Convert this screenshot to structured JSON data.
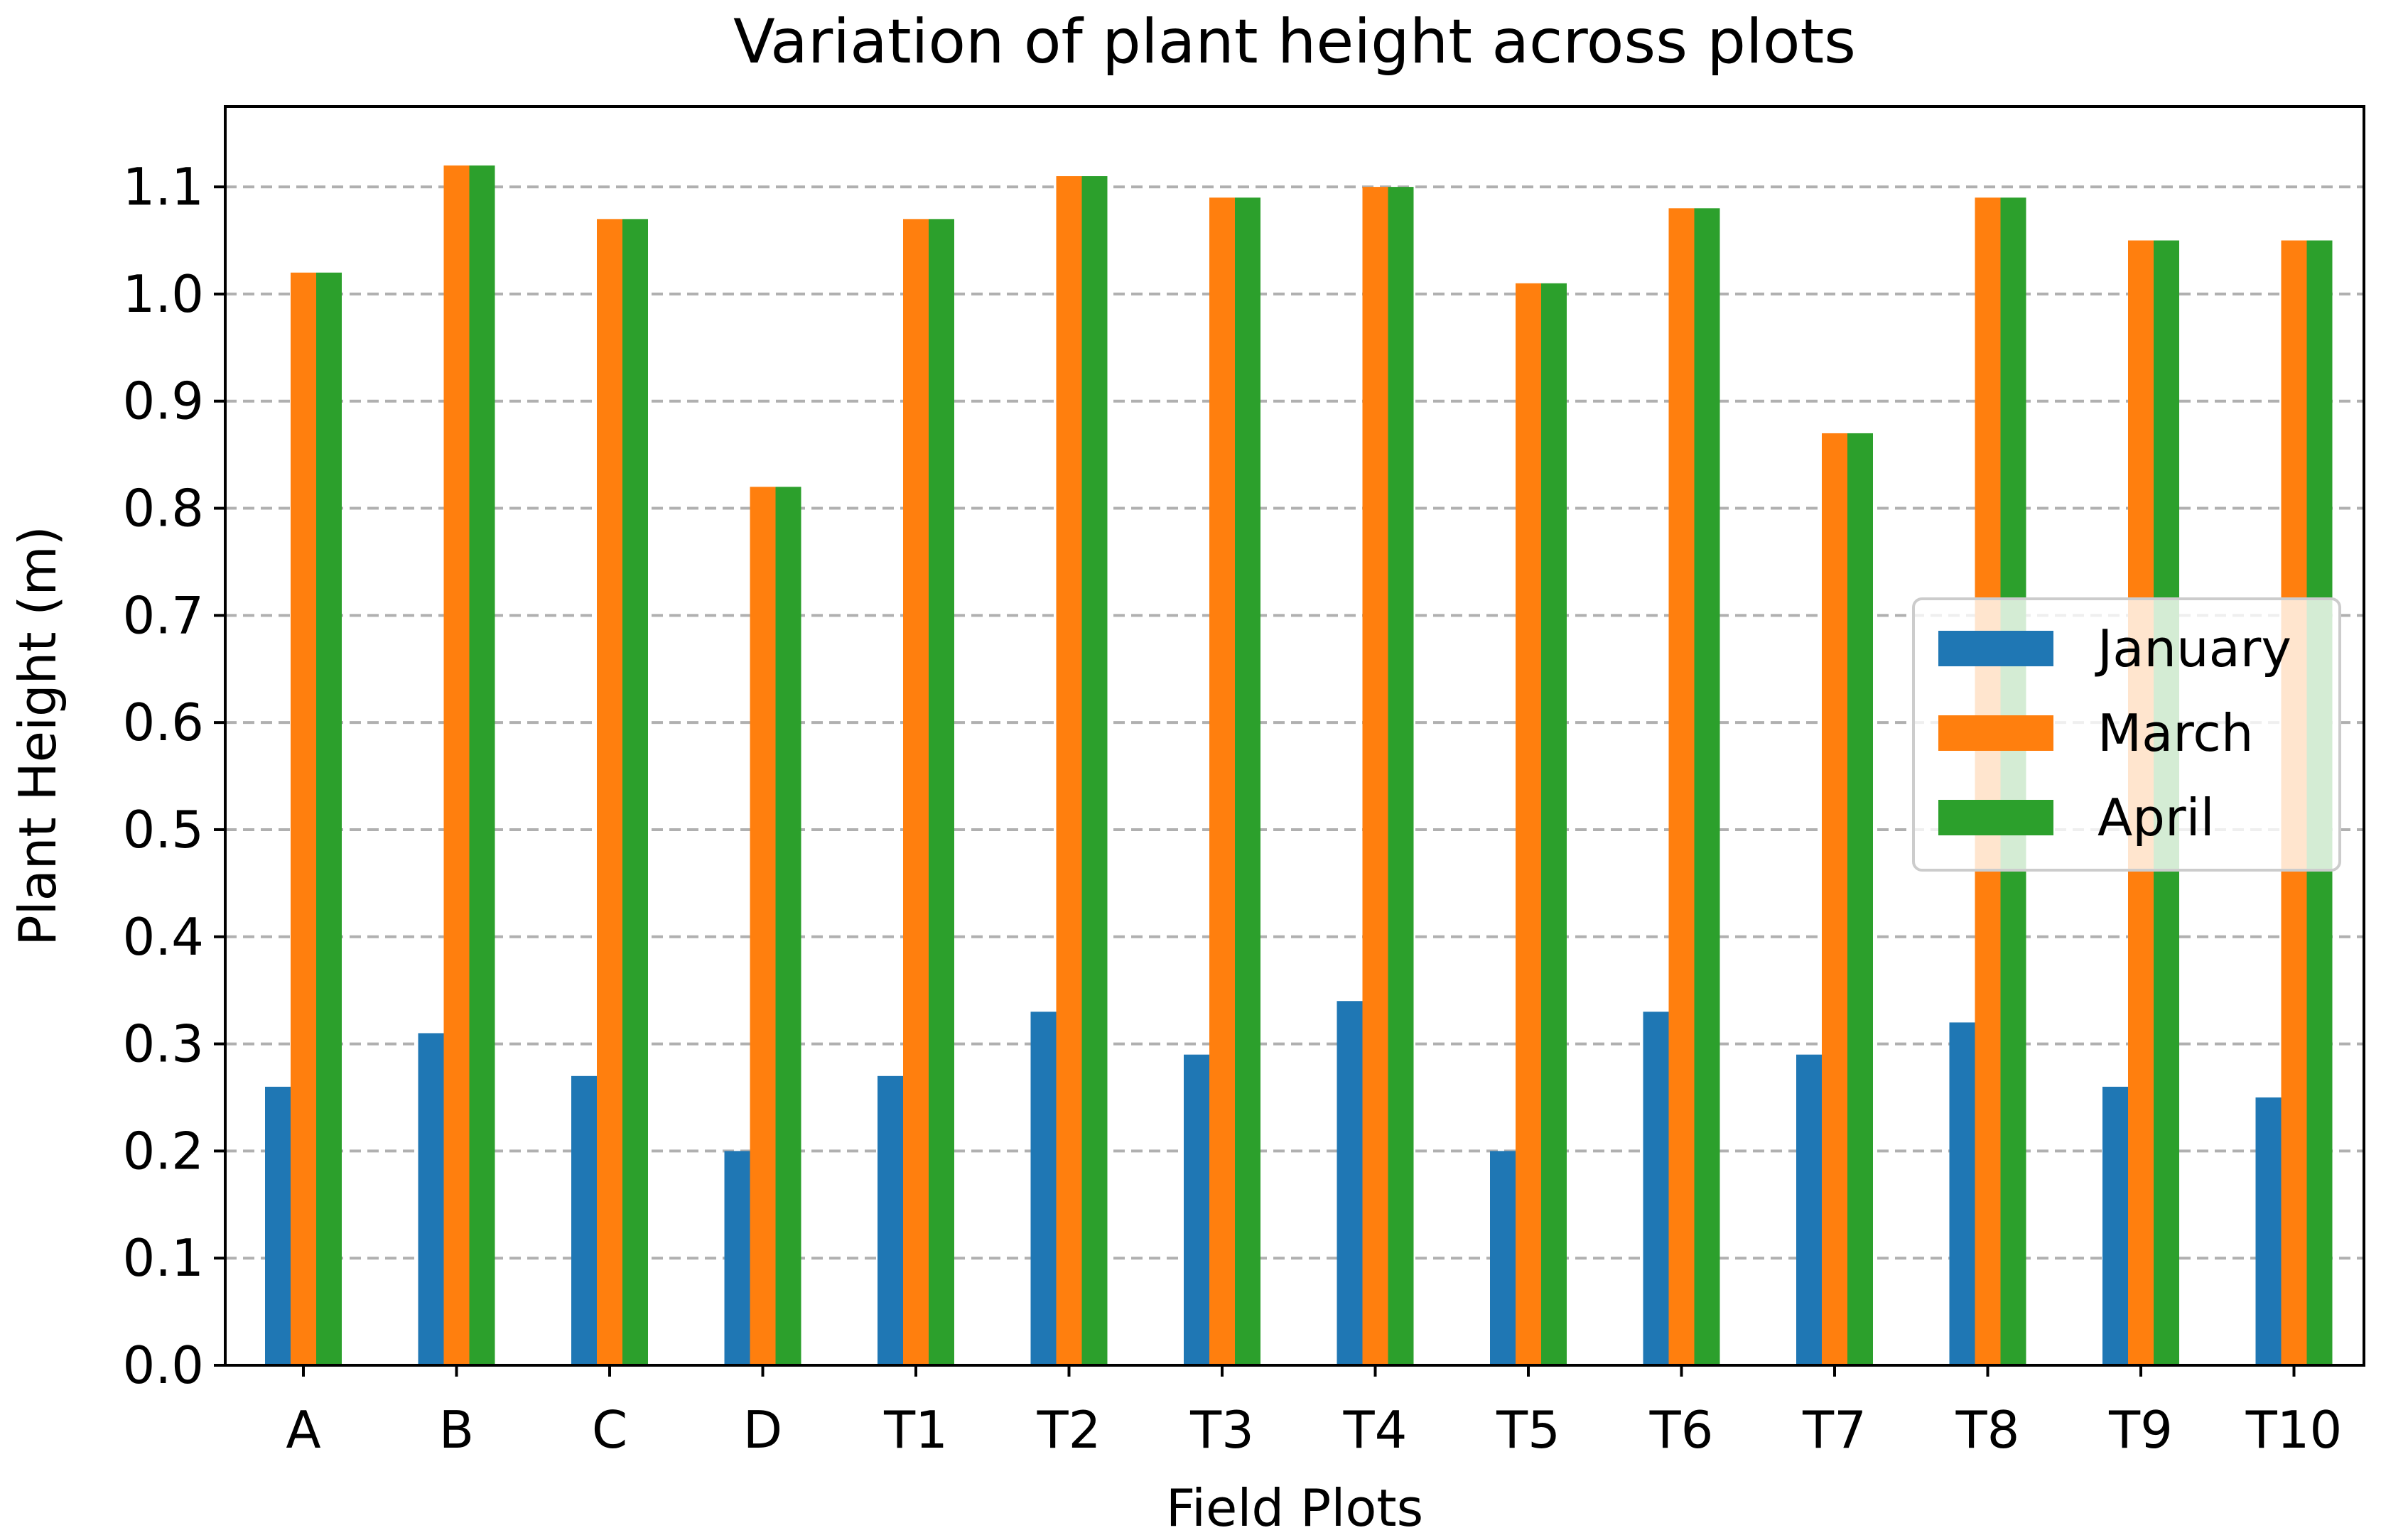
{
  "chart_data": {
    "type": "bar",
    "title": "Variation of plant height across plots",
    "xlabel": "Field Plots",
    "ylabel": "Plant Height (m)",
    "ylim": [
      0,
      1.175
    ],
    "yticks": [
      "0.0",
      "0.1",
      "0.2",
      "0.3",
      "0.4",
      "0.5",
      "0.6",
      "0.7",
      "0.8",
      "0.9",
      "1.0",
      "1.1"
    ],
    "ytick_values": [
      0,
      0.1,
      0.2,
      0.3,
      0.4,
      0.5,
      0.6,
      0.7,
      0.8,
      0.9,
      1.0,
      1.1
    ],
    "grid": "horizontal dashed",
    "legend_position": "center-right",
    "categories": [
      "A",
      "B",
      "C",
      "D",
      "T1",
      "T2",
      "T3",
      "T4",
      "T5",
      "T6",
      "T7",
      "T8",
      "T9",
      "T10"
    ],
    "series": [
      {
        "name": "January",
        "color": "#1f77b4",
        "values": [
          0.26,
          0.31,
          0.27,
          0.2,
          0.27,
          0.33,
          0.29,
          0.34,
          0.2,
          0.33,
          0.29,
          0.32,
          0.26,
          0.25
        ]
      },
      {
        "name": "March",
        "color": "#ff7f0e",
        "values": [
          1.02,
          1.12,
          1.07,
          0.82,
          1.07,
          1.11,
          1.09,
          1.1,
          1.01,
          1.08,
          0.87,
          1.09,
          1.05,
          1.05
        ]
      },
      {
        "name": "April",
        "color": "#2ca02c",
        "values": [
          1.02,
          1.12,
          1.07,
          0.82,
          1.07,
          1.11,
          1.09,
          1.1,
          1.01,
          1.08,
          0.87,
          1.09,
          1.05,
          1.05
        ]
      }
    ]
  }
}
